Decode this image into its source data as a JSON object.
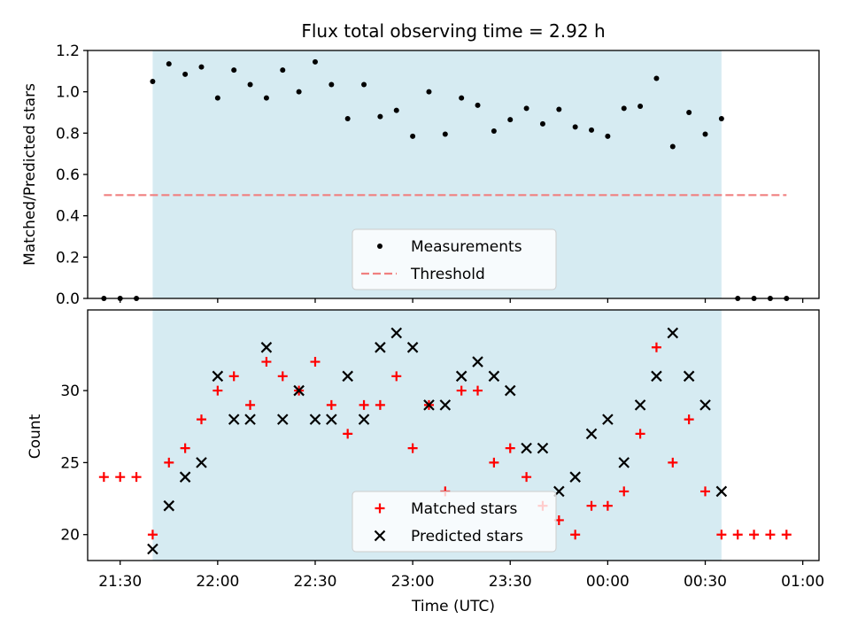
{
  "figure": {
    "title": "Flux total observing time = 2.92 h",
    "xlabel": "Time (UTC)",
    "x_tick_labels": [
      "21:30",
      "22:00",
      "22:30",
      "23:00",
      "23:30",
      "00:00",
      "00:30",
      "01:00"
    ]
  },
  "chart_data": [
    {
      "type": "scatter",
      "panel": "top",
      "ylabel": "Matched/Predicted stars",
      "x_unit": "time_utc",
      "x_range": [
        "21:20",
        "01:05"
      ],
      "ylim": [
        0.0,
        1.2
      ],
      "y_ticks": [
        0.0,
        0.2,
        0.4,
        0.6,
        0.8,
        1.0,
        1.2
      ],
      "y_tick_labels": [
        "0.0",
        "0.2",
        "0.4",
        "0.6",
        "0.8",
        "1.0",
        "1.2"
      ],
      "grid": false,
      "legend_position": "lower center",
      "shaded_interval": {
        "x": [
          "21:40",
          "00:35"
        ],
        "color": "#add8e6"
      },
      "series": [
        {
          "name": "Measurements",
          "marker": "dot",
          "color": "#000000",
          "points": [
            [
              "21:25",
              0.0
            ],
            [
              "21:30",
              0.0
            ],
            [
              "21:35",
              0.0
            ],
            [
              "21:40",
              1.05
            ],
            [
              "21:45",
              1.135
            ],
            [
              "21:50",
              1.085
            ],
            [
              "21:55",
              1.12
            ],
            [
              "22:00",
              0.97
            ],
            [
              "22:05",
              1.105
            ],
            [
              "22:10",
              1.035
            ],
            [
              "22:15",
              0.97
            ],
            [
              "22:20",
              1.105
            ],
            [
              "22:25",
              1.0
            ],
            [
              "22:30",
              1.145
            ],
            [
              "22:35",
              1.035
            ],
            [
              "22:40",
              0.87
            ],
            [
              "22:45",
              1.035
            ],
            [
              "22:50",
              0.88
            ],
            [
              "22:55",
              0.91
            ],
            [
              "23:00",
              0.785
            ],
            [
              "23:05",
              1.0
            ],
            [
              "23:10",
              0.795
            ],
            [
              "23:15",
              0.97
            ],
            [
              "23:20",
              0.935
            ],
            [
              "23:25",
              0.81
            ],
            [
              "23:30",
              0.865
            ],
            [
              "23:35",
              0.92
            ],
            [
              "23:40",
              0.845
            ],
            [
              "23:45",
              0.915
            ],
            [
              "23:50",
              0.83
            ],
            [
              "23:55",
              0.815
            ],
            [
              "00:00",
              0.785
            ],
            [
              "00:05",
              0.92
            ],
            [
              "00:10",
              0.93
            ],
            [
              "00:15",
              1.065
            ],
            [
              "00:20",
              0.735
            ],
            [
              "00:25",
              0.9
            ],
            [
              "00:30",
              0.795
            ],
            [
              "00:35",
              0.87
            ],
            [
              "00:40",
              0.0
            ],
            [
              "00:45",
              0.0
            ],
            [
              "00:50",
              0.0
            ],
            [
              "00:55",
              0.0
            ]
          ]
        },
        {
          "name": "Threshold",
          "line_style": "dashed",
          "color": "#f08080",
          "points": [
            [
              "21:25",
              0.5
            ],
            [
              "00:55",
              0.5
            ]
          ]
        }
      ]
    },
    {
      "type": "scatter",
      "panel": "bottom",
      "ylabel": "Count",
      "x_unit": "time_utc",
      "x_range": [
        "21:20",
        "01:05"
      ],
      "ylim": [
        18.2,
        35.6
      ],
      "y_ticks": [
        20,
        25,
        30
      ],
      "y_tick_labels": [
        "20",
        "25",
        "30"
      ],
      "grid": false,
      "legend_position": "lower center",
      "shaded_interval": {
        "x": [
          "21:40",
          "00:35"
        ],
        "color": "#add8e6"
      },
      "series": [
        {
          "name": "Matched stars",
          "marker": "plus",
          "color": "#ff0000",
          "points": [
            [
              "21:25",
              24
            ],
            [
              "21:30",
              24
            ],
            [
              "21:35",
              24
            ],
            [
              "21:40",
              20
            ],
            [
              "21:45",
              25
            ],
            [
              "21:50",
              26
            ],
            [
              "21:55",
              28
            ],
            [
              "22:00",
              30
            ],
            [
              "22:05",
              31
            ],
            [
              "22:10",
              29
            ],
            [
              "22:15",
              32
            ],
            [
              "22:20",
              31
            ],
            [
              "22:25",
              30
            ],
            [
              "22:30",
              32
            ],
            [
              "22:35",
              29
            ],
            [
              "22:40",
              27
            ],
            [
              "22:45",
              29
            ],
            [
              "22:50",
              29
            ],
            [
              "22:55",
              31
            ],
            [
              "23:00",
              26
            ],
            [
              "23:05",
              29
            ],
            [
              "23:10",
              23
            ],
            [
              "23:15",
              30
            ],
            [
              "23:20",
              30
            ],
            [
              "23:25",
              25
            ],
            [
              "23:30",
              26
            ],
            [
              "23:35",
              24
            ],
            [
              "23:40",
              22
            ],
            [
              "23:45",
              21
            ],
            [
              "23:50",
              20
            ],
            [
              "23:55",
              22
            ],
            [
              "00:00",
              22
            ],
            [
              "00:05",
              23
            ],
            [
              "00:10",
              27
            ],
            [
              "00:15",
              33
            ],
            [
              "00:20",
              25
            ],
            [
              "00:25",
              28
            ],
            [
              "00:30",
              23
            ],
            [
              "00:35",
              20
            ],
            [
              "00:40",
              20
            ],
            [
              "00:45",
              20
            ],
            [
              "00:50",
              20
            ],
            [
              "00:55",
              20
            ]
          ]
        },
        {
          "name": "Predicted stars",
          "marker": "x",
          "color": "#000000",
          "points": [
            [
              "21:40",
              19
            ],
            [
              "21:45",
              22
            ],
            [
              "21:50",
              24
            ],
            [
              "21:55",
              25
            ],
            [
              "22:00",
              31
            ],
            [
              "22:05",
              28
            ],
            [
              "22:10",
              28
            ],
            [
              "22:15",
              33
            ],
            [
              "22:20",
              28
            ],
            [
              "22:25",
              30
            ],
            [
              "22:30",
              28
            ],
            [
              "22:35",
              28
            ],
            [
              "22:40",
              31
            ],
            [
              "22:45",
              28
            ],
            [
              "22:50",
              33
            ],
            [
              "22:55",
              34
            ],
            [
              "23:00",
              33
            ],
            [
              "23:05",
              29
            ],
            [
              "23:10",
              29
            ],
            [
              "23:15",
              31
            ],
            [
              "23:20",
              32
            ],
            [
              "23:25",
              31
            ],
            [
              "23:30",
              30
            ],
            [
              "23:35",
              26
            ],
            [
              "23:40",
              26
            ],
            [
              "23:45",
              23
            ],
            [
              "23:50",
              24
            ],
            [
              "23:55",
              27
            ],
            [
              "00:00",
              28
            ],
            [
              "00:05",
              25
            ],
            [
              "00:10",
              29
            ],
            [
              "00:15",
              31
            ],
            [
              "00:20",
              34
            ],
            [
              "00:25",
              31
            ],
            [
              "00:30",
              29
            ],
            [
              "00:35",
              23
            ]
          ]
        }
      ]
    }
  ]
}
